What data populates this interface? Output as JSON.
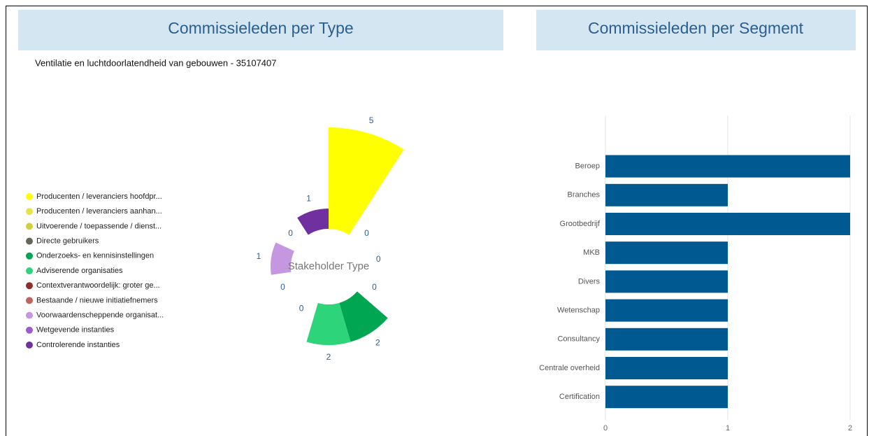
{
  "chart_data": [
    {
      "type": "polar",
      "title": "Commissieleden per Type",
      "subtitle": "Ventilatie en luchtdoorlatendheid van gebouwen - 35107407",
      "center_label": "Stakeholder Type",
      "categories": [
        "Producenten / leveranciers hoofdpr...",
        "Producenten / leveranciers aanhan...",
        "Uitvoerende / toepassende / dienst...",
        "Directe gebruikers",
        "Onderzoeks- en kennisinstellingen",
        "Adviserende organisaties",
        "Contextverantwoordelijk: groter ge...",
        "Bestaande / nieuwe initiatiefnemers",
        "Voorwaardenscheppende organisat...",
        "Wetgevende instanties",
        "Controlerende instanties"
      ],
      "values": [
        5,
        0,
        0,
        0,
        2,
        2,
        0,
        0,
        1,
        0,
        1
      ],
      "colors": [
        "#ffff00",
        "#e3e34a",
        "#d2cf3e",
        "#66665c",
        "#00a651",
        "#2ed47a",
        "#8b2f2a",
        "#c0645c",
        "#c597e0",
        "#9c5bce",
        "#7030a0"
      ]
    },
    {
      "type": "bar",
      "title": "Commissieleden per Segment",
      "categories": [
        "Beroep",
        "Branches",
        "Grootbedrijf",
        "MKB",
        "Divers",
        "Wetenschap",
        "Consultancy",
        "Centrale overheid",
        "Certification"
      ],
      "values": [
        2,
        1,
        2,
        1,
        1,
        1,
        1,
        1,
        1
      ],
      "color": "#005a91",
      "xlim": [
        0,
        2
      ],
      "xticks": [
        0,
        1,
        2
      ],
      "grid": true
    }
  ]
}
